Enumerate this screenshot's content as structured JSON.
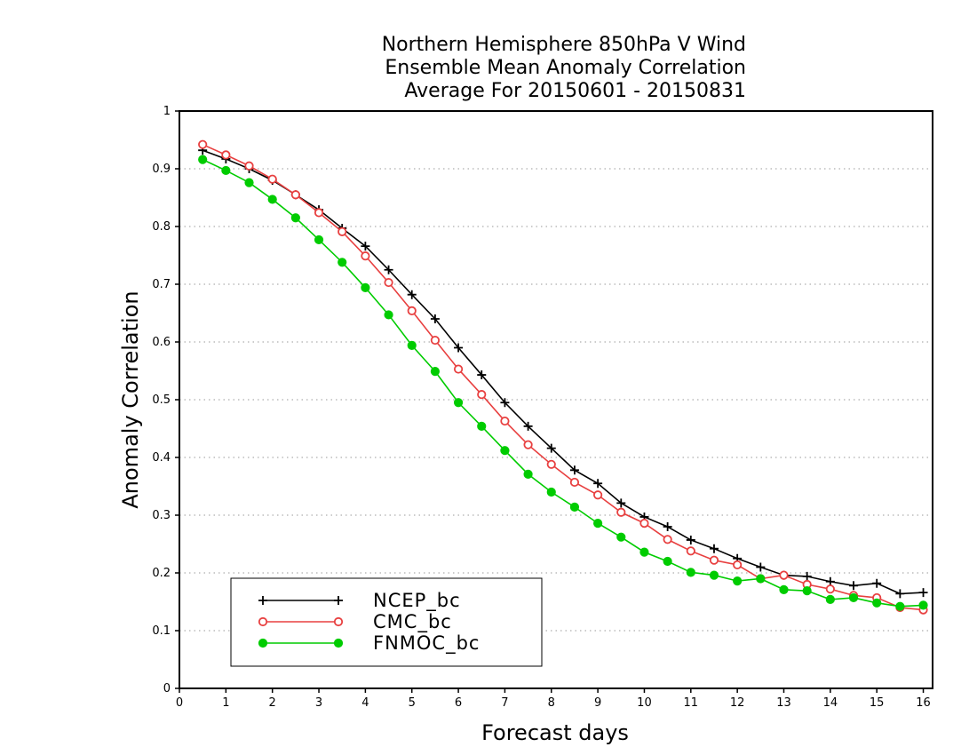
{
  "chart_data": {
    "type": "line",
    "title_lines": [
      "Northern Hemisphere 850hPa V Wind",
      "Ensemble Mean Anomaly Correlation",
      "Average For 20150601 - 20150831"
    ],
    "xlabel": "Forecast days",
    "ylabel": "Anomaly Correlation",
    "xlim": [
      0,
      16.2
    ],
    "ylim": [
      0,
      1
    ],
    "xticks": [
      "0",
      "1",
      "2",
      "3",
      "4",
      "5",
      "6",
      "7",
      "8",
      "9",
      "10",
      "11",
      "12",
      "13",
      "14",
      "15",
      "16"
    ],
    "yticks": [
      "0",
      "0.1",
      "0.2",
      "0.3",
      "0.4",
      "0.5",
      "0.6",
      "0.7",
      "0.8",
      "0.9",
      "1"
    ],
    "grid": "horizontal dotted",
    "legend_position": "bottom-left",
    "x": [
      0.5,
      1,
      1.5,
      2,
      2.5,
      3,
      3.5,
      4,
      4.5,
      5,
      5.5,
      6,
      6.5,
      7,
      7.5,
      8,
      8.5,
      9,
      9.5,
      10,
      10.5,
      11,
      11.5,
      12,
      12.5,
      13,
      13.5,
      14,
      14.5,
      15,
      15.5,
      16
    ],
    "series": [
      {
        "name": "NCEP_bc",
        "color": "#000000",
        "marker": "plus",
        "values": [
          0.932,
          0.917,
          0.9,
          0.88,
          0.855,
          0.829,
          0.797,
          0.766,
          0.725,
          0.682,
          0.64,
          0.59,
          0.543,
          0.495,
          0.454,
          0.416,
          0.378,
          0.355,
          0.321,
          0.297,
          0.28,
          0.257,
          0.242,
          0.225,
          0.21,
          0.196,
          0.194,
          0.185,
          0.178,
          0.182,
          0.164,
          0.166
        ]
      },
      {
        "name": "CMC_bc",
        "color": "#e84040",
        "marker": "open-circle",
        "values": [
          0.942,
          0.924,
          0.905,
          0.882,
          0.855,
          0.824,
          0.791,
          0.749,
          0.703,
          0.654,
          0.603,
          0.553,
          0.509,
          0.463,
          0.422,
          0.388,
          0.357,
          0.335,
          0.305,
          0.286,
          0.258,
          0.238,
          0.222,
          0.214,
          0.19,
          0.196,
          0.18,
          0.172,
          0.161,
          0.157,
          0.14,
          0.136
        ]
      },
      {
        "name": "FNMOC_bc",
        "color": "#00cc00",
        "marker": "filled-circle",
        "values": [
          0.916,
          0.897,
          0.876,
          0.847,
          0.815,
          0.777,
          0.738,
          0.694,
          0.647,
          0.594,
          0.549,
          0.495,
          0.454,
          0.412,
          0.371,
          0.34,
          0.314,
          0.286,
          0.262,
          0.236,
          0.22,
          0.201,
          0.196,
          0.186,
          0.19,
          0.171,
          0.169,
          0.154,
          0.157,
          0.148,
          0.142,
          0.144
        ]
      }
    ]
  }
}
